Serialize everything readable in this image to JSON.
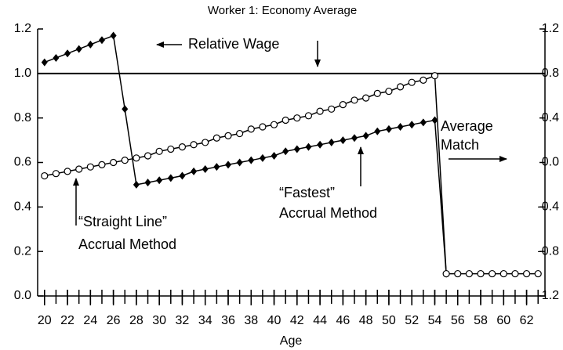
{
  "chart_data": {
    "type": "line",
    "title": "Worker 1: Economy Average",
    "xlabel": "Age",
    "x": [
      20,
      21,
      22,
      23,
      24,
      25,
      26,
      27,
      28,
      29,
      30,
      31,
      32,
      33,
      34,
      35,
      36,
      37,
      38,
      39,
      40,
      41,
      42,
      43,
      44,
      45,
      46,
      47,
      48,
      49,
      50,
      51,
      52,
      53,
      54,
      55,
      56,
      57,
      58,
      59,
      60,
      61,
      62,
      63
    ],
    "xlim": [
      19.4,
      63.6
    ],
    "xticks": [
      20,
      22,
      24,
      26,
      28,
      30,
      32,
      34,
      36,
      38,
      40,
      42,
      44,
      46,
      48,
      50,
      52,
      54,
      56,
      58,
      60,
      62
    ],
    "ylim": [
      0,
      1.2
    ],
    "yticks": [
      {
        "value": 0,
        "label": "0.0"
      },
      0.2,
      0.4,
      0.6,
      0.8,
      {
        "value": 1,
        "label": "1.0"
      },
      1.2
    ],
    "y2lim": [
      -1.2,
      1.2
    ],
    "y2ticks": [
      -1.2,
      -0.8,
      -0.4,
      {
        "value": 0,
        "label": "0.0"
      },
      0.4,
      0.8,
      1.2
    ],
    "reference_line": 1.0,
    "series": [
      {
        "color": "#000000",
        "marker": "diamond",
        "values": [
          1.05,
          1.07,
          1.09,
          1.11,
          1.13,
          1.15,
          1.17,
          0.84,
          0.5,
          0.51,
          0.52,
          0.53,
          0.54,
          0.56,
          0.57,
          0.58,
          0.59,
          0.6,
          0.61,
          0.62,
          0.63,
          0.65,
          0.66,
          0.67,
          0.68,
          0.69,
          0.7,
          0.71,
          0.72,
          0.74,
          0.75,
          0.76,
          0.77,
          0.78,
          0.79,
          0.1,
          null,
          null,
          null,
          null,
          null,
          null,
          null,
          null
        ]
      },
      {
        "color": "#000000",
        "marker": "circle",
        "values": [
          0.54,
          0.55,
          0.56,
          0.57,
          0.58,
          0.59,
          0.6,
          0.61,
          0.62,
          0.63,
          0.65,
          0.66,
          0.67,
          0.68,
          0.69,
          0.71,
          0.72,
          0.73,
          0.75,
          0.76,
          0.77,
          0.79,
          0.8,
          0.81,
          0.83,
          0.84,
          0.86,
          0.88,
          0.89,
          0.91,
          0.92,
          0.94,
          0.96,
          0.97,
          0.99,
          0.1,
          0.1,
          0.1,
          0.1,
          0.1,
          0.1,
          0.1,
          0.1,
          0.1
        ]
      }
    ],
    "annotations": [
      {
        "text": [
          "Relative Wage"
        ]
      },
      {
        "text": [
          "Average",
          "Match"
        ]
      },
      {
        "text": [
          "“Straight Line”",
          "Accrual Method"
        ]
      },
      {
        "text": [
          "“Fastest”",
          "Accrual Method"
        ]
      }
    ]
  }
}
